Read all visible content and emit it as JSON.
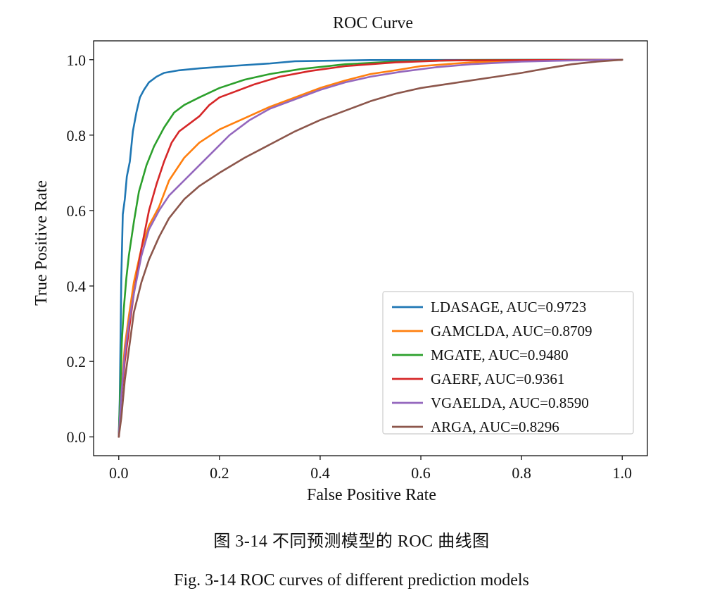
{
  "chart_data": {
    "type": "line",
    "title": "ROC Curve",
    "xlabel": "False Positive Rate",
    "ylabel": "True Positive Rate",
    "xlim": [
      -0.05,
      1.05
    ],
    "ylim": [
      -0.05,
      1.05
    ],
    "xticks": [
      "0.0",
      "0.2",
      "0.4",
      "0.6",
      "0.8",
      "1.0"
    ],
    "yticks": [
      "0.0",
      "0.2",
      "0.4",
      "0.6",
      "0.8",
      "1.0"
    ],
    "grid": false,
    "legend_position": "lower-right",
    "series": [
      {
        "name": "LDASAGE, AUC=0.9723",
        "color": "#1f77b4",
        "points": [
          [
            0,
            0
          ],
          [
            0.002,
            0.1
          ],
          [
            0.005,
            0.42
          ],
          [
            0.008,
            0.59
          ],
          [
            0.012,
            0.63
          ],
          [
            0.016,
            0.69
          ],
          [
            0.022,
            0.73
          ],
          [
            0.028,
            0.81
          ],
          [
            0.035,
            0.86
          ],
          [
            0.042,
            0.9
          ],
          [
            0.05,
            0.92
          ],
          [
            0.06,
            0.94
          ],
          [
            0.075,
            0.955
          ],
          [
            0.09,
            0.965
          ],
          [
            0.12,
            0.972
          ],
          [
            0.16,
            0.977
          ],
          [
            0.22,
            0.983
          ],
          [
            0.3,
            0.99
          ],
          [
            0.35,
            0.996
          ],
          [
            0.5,
            0.999
          ],
          [
            1.0,
            1.0
          ]
        ]
      },
      {
        "name": "GAMCLDA, AUC=0.8709",
        "color": "#ff7f0e",
        "points": [
          [
            0,
            0
          ],
          [
            0.005,
            0.12
          ],
          [
            0.012,
            0.24
          ],
          [
            0.02,
            0.32
          ],
          [
            0.03,
            0.41
          ],
          [
            0.045,
            0.5
          ],
          [
            0.06,
            0.56
          ],
          [
            0.08,
            0.61
          ],
          [
            0.1,
            0.68
          ],
          [
            0.13,
            0.74
          ],
          [
            0.16,
            0.78
          ],
          [
            0.2,
            0.815
          ],
          [
            0.25,
            0.845
          ],
          [
            0.3,
            0.875
          ],
          [
            0.35,
            0.9
          ],
          [
            0.4,
            0.925
          ],
          [
            0.45,
            0.945
          ],
          [
            0.5,
            0.962
          ],
          [
            0.55,
            0.972
          ],
          [
            0.6,
            0.983
          ],
          [
            0.7,
            0.993
          ],
          [
            0.8,
            0.998
          ],
          [
            1.0,
            1.0
          ]
        ]
      },
      {
        "name": "MGATE, AUC=0.9480",
        "color": "#2ca02c",
        "points": [
          [
            0,
            0
          ],
          [
            0.003,
            0.12
          ],
          [
            0.006,
            0.25
          ],
          [
            0.01,
            0.34
          ],
          [
            0.015,
            0.42
          ],
          [
            0.02,
            0.48
          ],
          [
            0.03,
            0.57
          ],
          [
            0.04,
            0.65
          ],
          [
            0.055,
            0.72
          ],
          [
            0.07,
            0.77
          ],
          [
            0.09,
            0.82
          ],
          [
            0.11,
            0.86
          ],
          [
            0.13,
            0.88
          ],
          [
            0.16,
            0.9
          ],
          [
            0.2,
            0.925
          ],
          [
            0.25,
            0.947
          ],
          [
            0.3,
            0.962
          ],
          [
            0.36,
            0.975
          ],
          [
            0.45,
            0.988
          ],
          [
            0.55,
            0.995
          ],
          [
            0.7,
            0.999
          ],
          [
            1.0,
            1.0
          ]
        ]
      },
      {
        "name": "GAERF, AUC=0.9361",
        "color": "#d62728",
        "points": [
          [
            0,
            0
          ],
          [
            0.005,
            0.1
          ],
          [
            0.012,
            0.2
          ],
          [
            0.02,
            0.28
          ],
          [
            0.03,
            0.38
          ],
          [
            0.045,
            0.5
          ],
          [
            0.06,
            0.6
          ],
          [
            0.075,
            0.67
          ],
          [
            0.09,
            0.73
          ],
          [
            0.105,
            0.78
          ],
          [
            0.12,
            0.81
          ],
          [
            0.14,
            0.83
          ],
          [
            0.16,
            0.85
          ],
          [
            0.18,
            0.88
          ],
          [
            0.2,
            0.9
          ],
          [
            0.23,
            0.915
          ],
          [
            0.27,
            0.935
          ],
          [
            0.32,
            0.955
          ],
          [
            0.38,
            0.97
          ],
          [
            0.45,
            0.983
          ],
          [
            0.55,
            0.993
          ],
          [
            0.65,
            0.998
          ],
          [
            1.0,
            1.0
          ]
        ]
      },
      {
        "name": "VGAELDA, AUC=0.8590",
        "color": "#9467bd",
        "points": [
          [
            0,
            0
          ],
          [
            0.005,
            0.11
          ],
          [
            0.012,
            0.22
          ],
          [
            0.02,
            0.3
          ],
          [
            0.03,
            0.38
          ],
          [
            0.045,
            0.48
          ],
          [
            0.06,
            0.55
          ],
          [
            0.08,
            0.6
          ],
          [
            0.1,
            0.64
          ],
          [
            0.13,
            0.68
          ],
          [
            0.16,
            0.72
          ],
          [
            0.19,
            0.76
          ],
          [
            0.22,
            0.8
          ],
          [
            0.26,
            0.84
          ],
          [
            0.3,
            0.87
          ],
          [
            0.35,
            0.895
          ],
          [
            0.4,
            0.92
          ],
          [
            0.45,
            0.94
          ],
          [
            0.5,
            0.955
          ],
          [
            0.56,
            0.968
          ],
          [
            0.63,
            0.98
          ],
          [
            0.7,
            0.988
          ],
          [
            0.8,
            0.995
          ],
          [
            0.9,
            0.998
          ],
          [
            1.0,
            1.0
          ]
        ]
      },
      {
        "name": "ARGA, AUC=0.8296",
        "color": "#8c564b",
        "points": [
          [
            0,
            0
          ],
          [
            0.005,
            0.05
          ],
          [
            0.012,
            0.15
          ],
          [
            0.02,
            0.23
          ],
          [
            0.03,
            0.33
          ],
          [
            0.045,
            0.41
          ],
          [
            0.06,
            0.47
          ],
          [
            0.08,
            0.53
          ],
          [
            0.1,
            0.58
          ],
          [
            0.13,
            0.63
          ],
          [
            0.16,
            0.665
          ],
          [
            0.2,
            0.7
          ],
          [
            0.25,
            0.74
          ],
          [
            0.3,
            0.775
          ],
          [
            0.35,
            0.81
          ],
          [
            0.4,
            0.84
          ],
          [
            0.45,
            0.865
          ],
          [
            0.5,
            0.89
          ],
          [
            0.55,
            0.91
          ],
          [
            0.6,
            0.925
          ],
          [
            0.65,
            0.935
          ],
          [
            0.7,
            0.945
          ],
          [
            0.75,
            0.955
          ],
          [
            0.8,
            0.965
          ],
          [
            0.85,
            0.977
          ],
          [
            0.9,
            0.988
          ],
          [
            0.95,
            0.995
          ],
          [
            1.0,
            1.0
          ]
        ]
      }
    ]
  },
  "captions": {
    "cn": "图 3-14  不同预测模型的 ROC 曲线图",
    "en": "Fig. 3-14 ROC curves of different prediction models"
  }
}
